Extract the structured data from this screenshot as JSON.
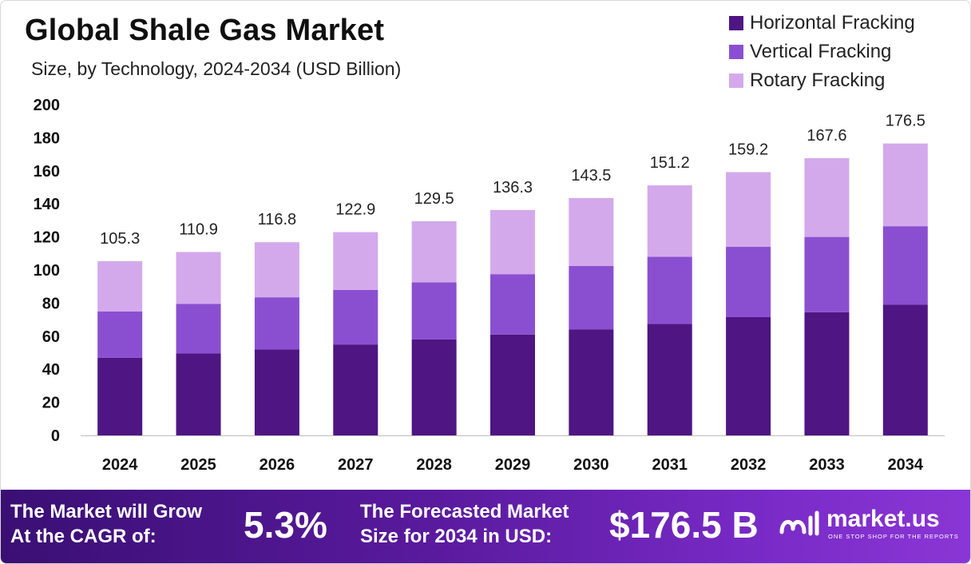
{
  "header": {
    "title": "Global Shale Gas Market",
    "subtitle": "Size, by Technology, 2024-2034 (USD Billion)"
  },
  "colors": {
    "horizontal": "#4e1583",
    "vertical": "#8a4fd0",
    "rotary": "#d3a9ec",
    "axis": "#bdbdbd"
  },
  "chart_data": {
    "type": "bar",
    "stacked": true,
    "categories": [
      "2024",
      "2025",
      "2026",
      "2027",
      "2028",
      "2029",
      "2030",
      "2031",
      "2032",
      "2033",
      "2034"
    ],
    "series": [
      {
        "name": "Horizontal Fracking",
        "values": [
          47,
          49.5,
          52,
          55,
          58,
          61,
          64,
          67.5,
          71.5,
          74.5,
          79
        ]
      },
      {
        "name": "Vertical Fracking",
        "values": [
          28,
          30,
          31.5,
          33,
          34.5,
          36.5,
          38.5,
          40.5,
          42.5,
          45.5,
          47.5
        ]
      },
      {
        "name": "Rotary Fracking",
        "values": [
          30.3,
          31.4,
          33.3,
          34.9,
          37,
          38.8,
          41,
          43.2,
          45.2,
          47.6,
          50
        ]
      }
    ],
    "totals": [
      105.3,
      110.9,
      116.8,
      122.9,
      129.5,
      136.3,
      143.5,
      151.2,
      159.2,
      167.6,
      176.5
    ],
    "total_labels": [
      "105.3",
      "110.9",
      "116.8",
      "122.9",
      "129.5",
      "136.3",
      "143.5",
      "151.2",
      "159.2",
      "167.6",
      "176.5"
    ],
    "yticks": [
      "0",
      "20",
      "40",
      "60",
      "80",
      "100",
      "120",
      "140",
      "160",
      "180",
      "200"
    ],
    "ylim": [
      0,
      200
    ],
    "legend": "top-right",
    "grid": false
  },
  "footer": {
    "cagr_line1": "The Market will Grow",
    "cagr_line2": "At the CAGR of:",
    "cagr_value": "5.3%",
    "forecast_line1": "The Forecasted Market",
    "forecast_line2": "Size for 2034 in USD:",
    "forecast_value": "$176.5 B",
    "brand_name": "market.us",
    "brand_tagline": "ONE STOP SHOP FOR THE REPORTS"
  }
}
